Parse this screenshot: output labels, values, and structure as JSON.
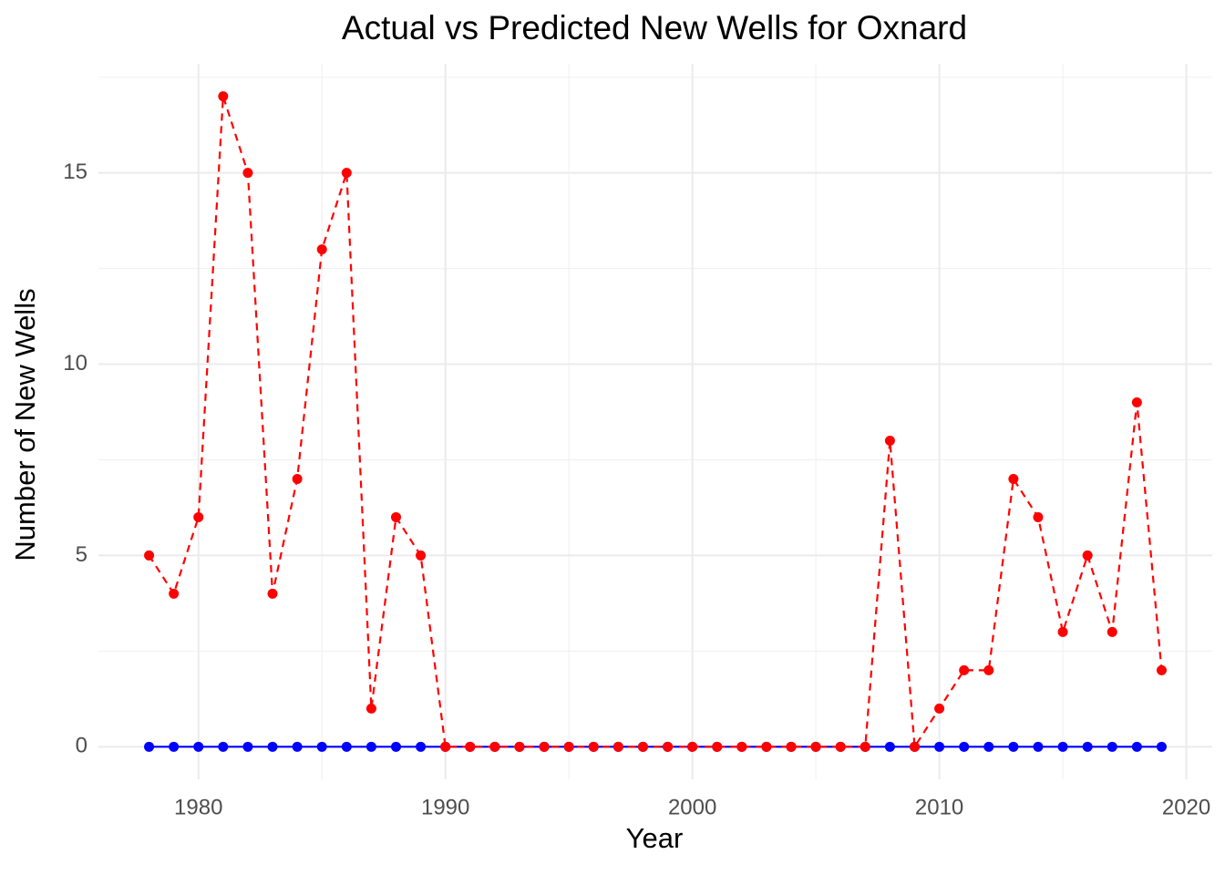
{
  "chart_data": {
    "type": "line",
    "title": "Actual vs Predicted New Wells for Oxnard",
    "x_label": "Year",
    "y_label": "Number of New Wells",
    "x": [
      1978,
      1979,
      1980,
      1981,
      1982,
      1983,
      1984,
      1985,
      1986,
      1987,
      1988,
      1989,
      1990,
      1991,
      1992,
      1993,
      1994,
      1995,
      1996,
      1997,
      1998,
      1999,
      2000,
      2001,
      2002,
      2003,
      2004,
      2005,
      2006,
      2007,
      2008,
      2009,
      2010,
      2011,
      2012,
      2013,
      2014,
      2015,
      2016,
      2017,
      2018,
      2019
    ],
    "series": [
      {
        "color": "#0000ff",
        "linestyle": "solid",
        "values": [
          0,
          0,
          0,
          0,
          0,
          0,
          0,
          0,
          0,
          0,
          0,
          0,
          0,
          0,
          0,
          0,
          0,
          0,
          0,
          0,
          0,
          0,
          0,
          0,
          0,
          0,
          0,
          0,
          0,
          0,
          0,
          0,
          0,
          0,
          0,
          0,
          0,
          0,
          0,
          0,
          0,
          0
        ]
      },
      {
        "color": "#ff0000",
        "linestyle": "dashed",
        "values": [
          5,
          4,
          6,
          17,
          15,
          4,
          7,
          13,
          15,
          1,
          6,
          5,
          0,
          0,
          0,
          0,
          0,
          0,
          0,
          0,
          0,
          0,
          0,
          0,
          0,
          0,
          0,
          0,
          0,
          0,
          8,
          0,
          1,
          2,
          2,
          7,
          6,
          3,
          5,
          3,
          9,
          2
        ]
      }
    ],
    "xlim": [
      1975.95,
      2021.05
    ],
    "xticks": [
      1980,
      1990,
      2000,
      2010,
      2020
    ],
    "ylim": [
      -0.85,
      17.85
    ],
    "yticks": [
      0,
      5,
      10,
      15
    ],
    "grid": true
  }
}
